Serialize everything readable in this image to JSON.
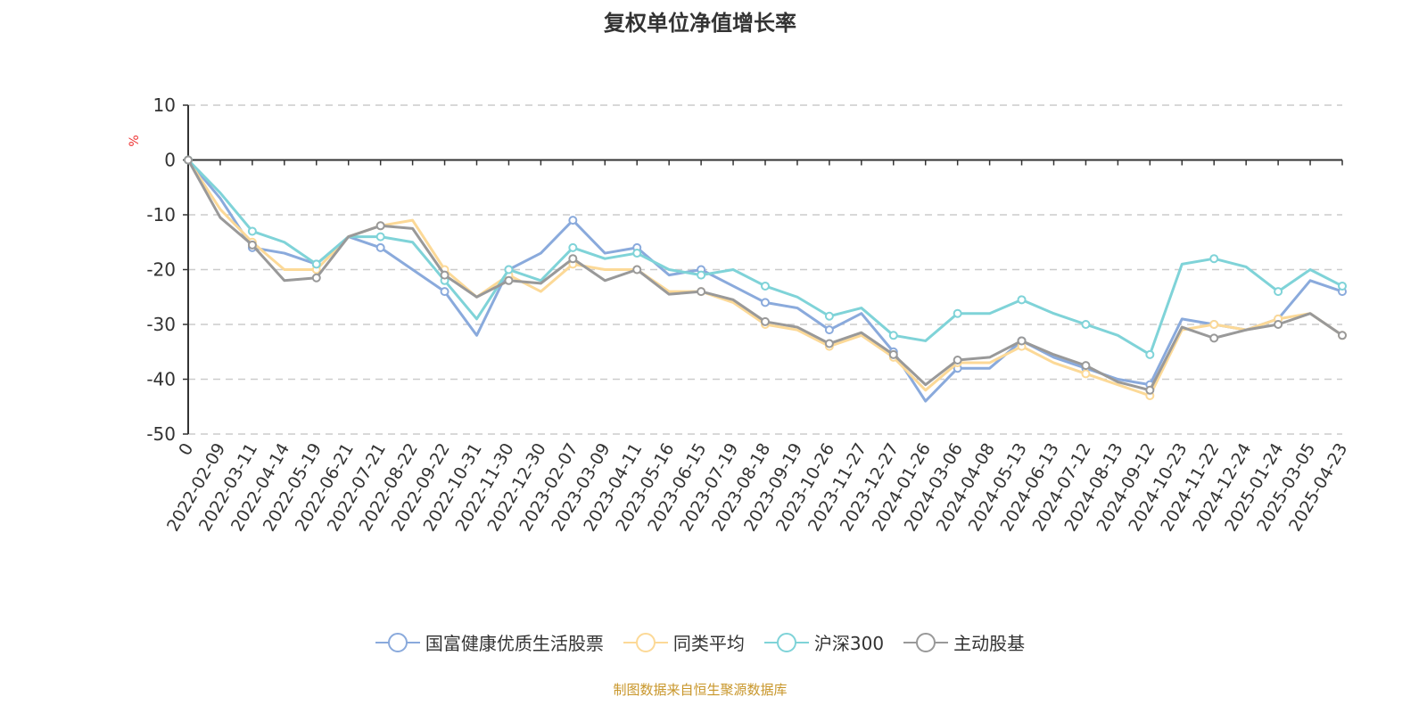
{
  "chart_data": {
    "type": "line",
    "title": "复权单位净值增长率",
    "ylabel": "%",
    "ylim": [
      -50,
      10
    ],
    "yticks": [
      10,
      0,
      -10,
      -20,
      -30,
      -40,
      -50
    ],
    "grid": true,
    "legend_position": "bottom",
    "categories": [
      "0",
      "2022-02-09",
      "2022-03-11",
      "2022-04-14",
      "2022-05-19",
      "2022-06-21",
      "2022-07-21",
      "2022-08-22",
      "2022-09-22",
      "2022-10-31",
      "2022-11-30",
      "2022-12-30",
      "2023-02-07",
      "2023-03-09",
      "2023-04-11",
      "2023-05-16",
      "2023-06-15",
      "2023-07-19",
      "2023-08-18",
      "2023-09-19",
      "2023-10-26",
      "2023-11-27",
      "2023-12-27",
      "2024-01-26",
      "2024-03-06",
      "2024-04-08",
      "2024-05-13",
      "2024-06-13",
      "2024-07-12",
      "2024-08-13",
      "2024-09-12",
      "2024-10-23",
      "2024-11-22",
      "2024-12-24",
      "2025-01-24",
      "2025-03-05",
      "2025-04-23"
    ],
    "series": [
      {
        "name": "国富健康优质生活股票",
        "color": "#8aaadc",
        "values": [
          0,
          -7,
          -16,
          -17,
          -19,
          -14,
          -16,
          -20,
          -24,
          -32,
          -20,
          -17,
          -11,
          -17,
          -16,
          -21,
          -20,
          -23,
          -26,
          -27,
          -31,
          -28,
          -35,
          -44,
          -38,
          -38,
          -33,
          -36,
          -38,
          -40,
          -41,
          -29,
          -30,
          -31,
          -29,
          -22,
          -24
        ]
      },
      {
        "name": "同类平均",
        "color": "#fcd997",
        "values": [
          0,
          -9,
          -15,
          -20,
          -20,
          -14,
          -12,
          -11,
          -20,
          -25,
          -21,
          -24,
          -19,
          -20,
          -20,
          -24,
          -24,
          -26,
          -30,
          -31,
          -34,
          -32,
          -36,
          -42,
          -37,
          -37,
          -34,
          -37,
          -39,
          -41,
          -43,
          -31,
          -30,
          -31,
          -29,
          -28,
          -32
        ]
      },
      {
        "name": "沪深300",
        "color": "#7fd3d8",
        "values": [
          0,
          -6,
          -13,
          -15,
          -19,
          -14,
          -14,
          -15,
          -22,
          -29,
          -20,
          -22,
          -16,
          -18,
          -17,
          -20,
          -21,
          -20,
          -23,
          -25,
          -28.5,
          -27,
          -32,
          -33,
          -28,
          -28,
          -25.5,
          -28,
          -30,
          -32,
          -35.5,
          -19,
          -18,
          -19.5,
          -24,
          -20,
          -23
        ]
      },
      {
        "name": "主动股基",
        "color": "#999999",
        "values": [
          0,
          -10.5,
          -15.5,
          -22,
          -21.5,
          -14,
          -12,
          -12.5,
          -21,
          -25,
          -22,
          -22.5,
          -18,
          -22,
          -20,
          -24.5,
          -24,
          -25.5,
          -29.5,
          -30.5,
          -33.5,
          -31.5,
          -35.5,
          -41,
          -36.5,
          -36,
          -33,
          -35.5,
          -37.5,
          -40.5,
          -42,
          -30.5,
          -32.5,
          -31,
          -30,
          -28,
          -32
        ]
      }
    ]
  },
  "footer": "制图数据来自恒生聚源数据库"
}
